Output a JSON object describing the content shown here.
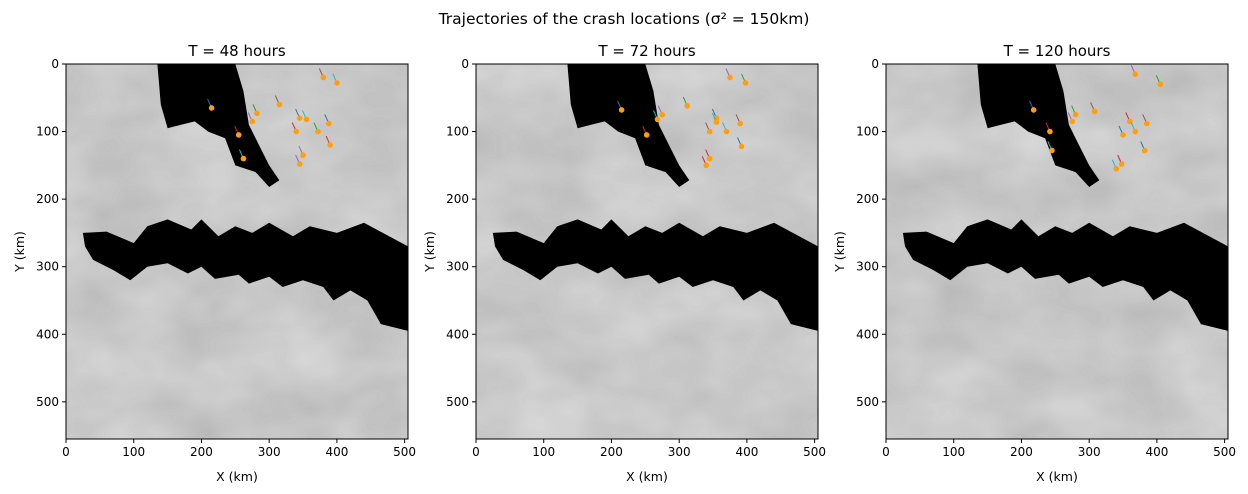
{
  "suptitle": "Trajectories of the crash locations (σ² = 150km)",
  "chart_data": [
    {
      "type": "scatter",
      "title": "T = 48 hours",
      "xlabel": "X (km)",
      "ylabel": "Y (km)",
      "xlim": [
        0,
        505
      ],
      "ylim": [
        555,
        0
      ],
      "xticks": [
        0,
        100,
        200,
        300,
        400,
        500
      ],
      "yticks": [
        0,
        100,
        200,
        300,
        400,
        500
      ],
      "background": "grayscale terrain map with black land masses",
      "point_color": "#ff9f0e",
      "points": [
        [
          215,
          65
        ],
        [
          255,
          105
        ],
        [
          262,
          140
        ],
        [
          275,
          85
        ],
        [
          282,
          73
        ],
        [
          315,
          60
        ],
        [
          345,
          80
        ],
        [
          340,
          100
        ],
        [
          355,
          82
        ],
        [
          350,
          135
        ],
        [
          372,
          100
        ],
        [
          380,
          20
        ],
        [
          388,
          88
        ],
        [
          390,
          120
        ],
        [
          400,
          28
        ],
        [
          345,
          148
        ]
      ]
    },
    {
      "type": "scatter",
      "title": "T = 72 hours",
      "xlabel": "X (km)",
      "ylabel": "Y (km)",
      "xlim": [
        0,
        505
      ],
      "ylim": [
        555,
        0
      ],
      "xticks": [
        0,
        100,
        200,
        300,
        400,
        500
      ],
      "yticks": [
        0,
        100,
        200,
        300,
        400,
        500
      ],
      "background": "grayscale terrain map with black land masses",
      "point_color": "#ff9f0e",
      "points": [
        [
          215,
          68
        ],
        [
          252,
          105
        ],
        [
          268,
          82
        ],
        [
          275,
          75
        ],
        [
          312,
          62
        ],
        [
          345,
          100
        ],
        [
          355,
          80
        ],
        [
          345,
          140
        ],
        [
          370,
          100
        ],
        [
          375,
          20
        ],
        [
          398,
          28
        ],
        [
          390,
          88
        ],
        [
          392,
          122
        ],
        [
          340,
          150
        ],
        [
          355,
          86
        ]
      ]
    },
    {
      "type": "scatter",
      "title": "T = 120 hours",
      "xlabel": "X (km)",
      "ylabel": "Y (km)",
      "xlim": [
        0,
        505
      ],
      "ylim": [
        555,
        0
      ],
      "xticks": [
        0,
        100,
        200,
        300,
        400,
        500
      ],
      "yticks": [
        0,
        100,
        200,
        300,
        400,
        500
      ],
      "background": "grayscale terrain map with black land masses",
      "point_color": "#ff9f0e",
      "points": [
        [
          218,
          68
        ],
        [
          242,
          100
        ],
        [
          245,
          128
        ],
        [
          275,
          85
        ],
        [
          280,
          75
        ],
        [
          308,
          70
        ],
        [
          350,
          105
        ],
        [
          360,
          85
        ],
        [
          368,
          100
        ],
        [
          368,
          15
        ],
        [
          405,
          30
        ],
        [
          385,
          88
        ],
        [
          382,
          128
        ],
        [
          348,
          148
        ],
        [
          340,
          155
        ]
      ]
    }
  ]
}
